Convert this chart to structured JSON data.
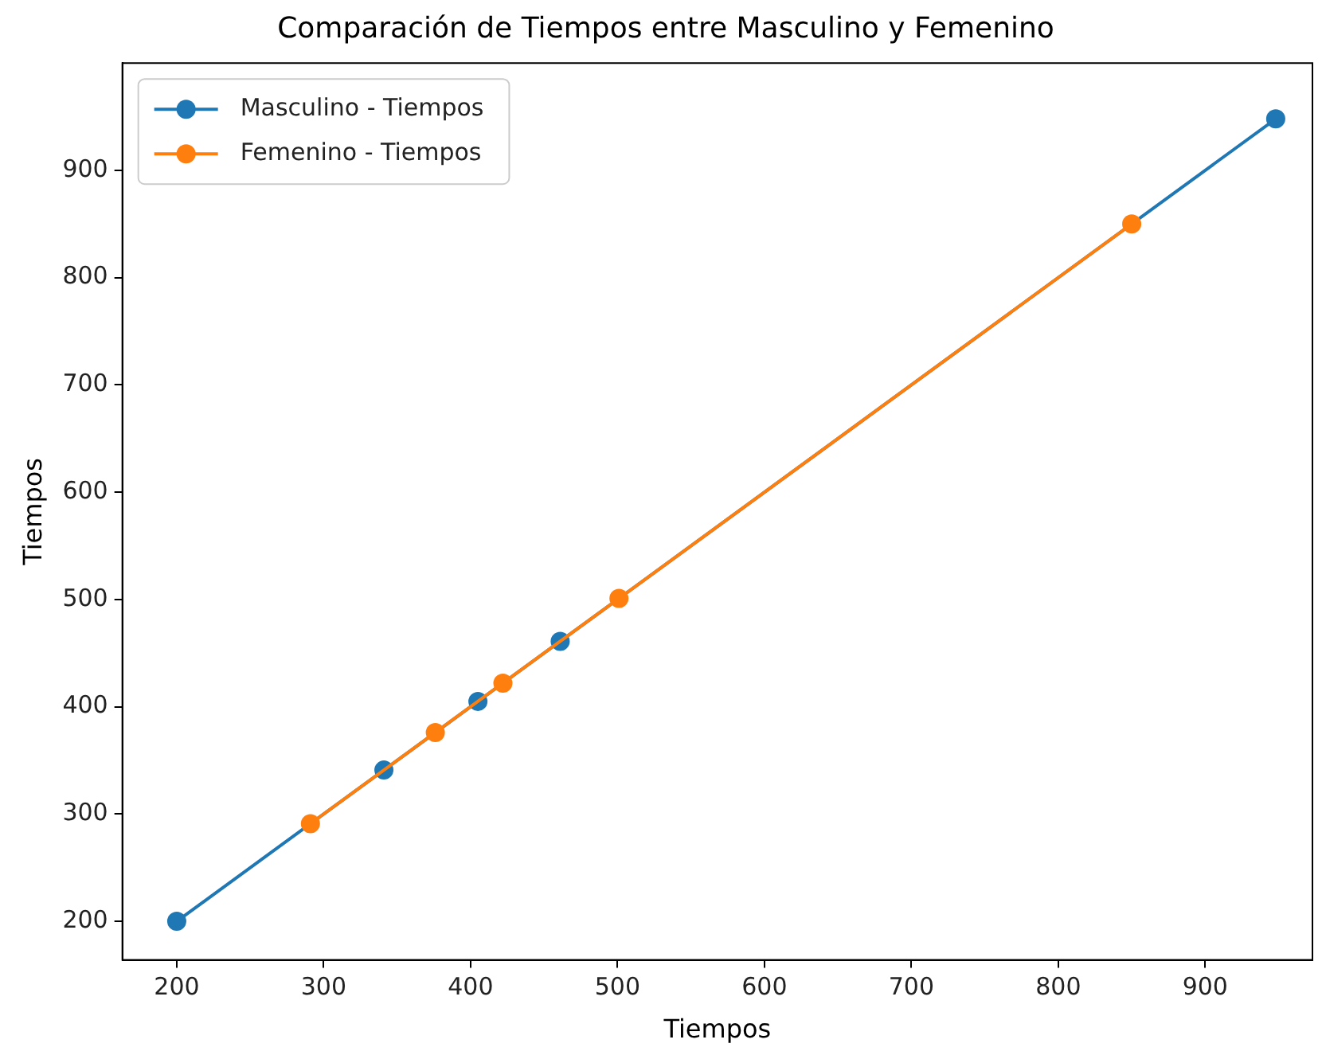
{
  "chart_data": {
    "type": "line",
    "title": "Comparación de Tiempos entre Masculino y Femenino",
    "xlabel": "Tiempos",
    "ylabel": "Tiempos",
    "series": [
      {
        "name": "Masculino - Tiempos",
        "color": "#1f77b4",
        "x": [
          200,
          341,
          405,
          461,
          948
        ],
        "values": [
          200,
          341,
          405,
          461,
          948
        ]
      },
      {
        "name": "Femenino - Tiempos",
        "color": "#ff7f0e",
        "x": [
          291,
          376,
          422,
          501,
          850
        ],
        "values": [
          291,
          376,
          422,
          501,
          850
        ]
      }
    ],
    "xlim": [
      163,
      973
    ],
    "ylim": [
      164,
      1000
    ],
    "xticks": [
      200,
      300,
      400,
      500,
      600,
      700,
      800,
      900
    ],
    "yticks": [
      200,
      300,
      400,
      500,
      600,
      700,
      800,
      900
    ],
    "grid": false,
    "legend": "top left",
    "marker": "circle",
    "line_style": "solid"
  }
}
